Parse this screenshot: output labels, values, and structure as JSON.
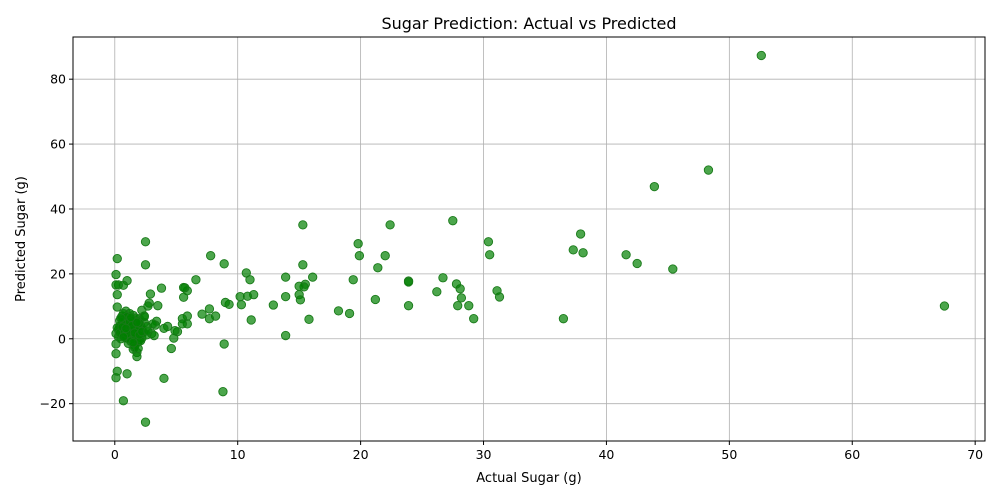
{
  "chart_data": {
    "type": "scatter",
    "title": "Sugar Prediction: Actual vs Predicted",
    "xlabel": "Actual Sugar (g)",
    "ylabel": "Predicted Sugar (g)",
    "xlim": [
      -3.4,
      70.8
    ],
    "ylim": [
      -31.5,
      93
    ],
    "xticks": [
      0,
      10,
      20,
      30,
      40,
      50,
      60,
      70
    ],
    "yticks": [
      -20,
      0,
      20,
      40,
      60,
      80
    ],
    "grid": true,
    "point_color": "#008000",
    "point_alpha": 0.7,
    "points": [
      [
        52.6,
        87.3
      ],
      [
        48.3,
        52.0
      ],
      [
        43.9,
        46.9
      ],
      [
        67.5,
        10.1
      ],
      [
        45.4,
        21.5
      ],
      [
        42.5,
        23.2
      ],
      [
        41.6,
        25.9
      ],
      [
        38.1,
        26.5
      ],
      [
        37.9,
        32.3
      ],
      [
        37.3,
        27.4
      ],
      [
        36.5,
        6.2
      ],
      [
        31.3,
        12.9
      ],
      [
        31.1,
        14.8
      ],
      [
        30.4,
        29.9
      ],
      [
        30.5,
        25.9
      ],
      [
        29.2,
        6.2
      ],
      [
        28.8,
        10.2
      ],
      [
        28.2,
        12.6
      ],
      [
        28.1,
        15.4
      ],
      [
        27.8,
        16.9
      ],
      [
        27.9,
        10.2
      ],
      [
        27.5,
        36.4
      ],
      [
        26.7,
        18.8
      ],
      [
        26.2,
        14.5
      ],
      [
        23.9,
        17.8
      ],
      [
        23.9,
        17.5
      ],
      [
        23.9,
        10.2
      ],
      [
        22.4,
        35.1
      ],
      [
        22.0,
        25.6
      ],
      [
        21.4,
        21.9
      ],
      [
        21.2,
        12.1
      ],
      [
        19.9,
        25.6
      ],
      [
        19.8,
        29.3
      ],
      [
        19.4,
        18.2
      ],
      [
        19.1,
        7.8
      ],
      [
        18.2,
        8.6
      ],
      [
        16.1,
        19.0
      ],
      [
        15.8,
        6.0
      ],
      [
        15.5,
        16.8
      ],
      [
        15.4,
        16.0
      ],
      [
        15.3,
        22.8
      ],
      [
        15.3,
        35.1
      ],
      [
        15.0,
        16.2
      ],
      [
        15.0,
        13.6
      ],
      [
        15.1,
        12.0
      ],
      [
        13.9,
        19.0
      ],
      [
        13.9,
        13.0
      ],
      [
        13.9,
        1.0
      ],
      [
        12.9,
        10.4
      ],
      [
        11.3,
        13.6
      ],
      [
        11.1,
        5.8
      ],
      [
        11.0,
        18.2
      ],
      [
        10.8,
        13.1
      ],
      [
        10.7,
        20.3
      ],
      [
        10.2,
        13.0
      ],
      [
        10.3,
        10.5
      ],
      [
        9.3,
        10.6
      ],
      [
        9.0,
        11.2
      ],
      [
        8.9,
        23.1
      ],
      [
        8.9,
        -1.6
      ],
      [
        8.8,
        -16.3
      ],
      [
        8.2,
        7.0
      ],
      [
        7.8,
        25.6
      ],
      [
        7.7,
        9.2
      ],
      [
        7.7,
        6.2
      ],
      [
        7.1,
        7.6
      ],
      [
        6.6,
        18.2
      ],
      [
        5.9,
        14.8
      ],
      [
        5.9,
        7.0
      ],
      [
        5.9,
        4.6
      ],
      [
        5.7,
        15.7
      ],
      [
        5.6,
        15.8
      ],
      [
        5.6,
        12.8
      ],
      [
        5.5,
        6.2
      ],
      [
        5.5,
        4.6
      ],
      [
        5.1,
        2.2
      ],
      [
        4.9,
        2.5
      ],
      [
        4.8,
        0.2
      ],
      [
        4.6,
        -3.0
      ],
      [
        4.3,
        3.8
      ],
      [
        4.0,
        3.2
      ],
      [
        4.0,
        -12.2
      ],
      [
        3.8,
        15.6
      ],
      [
        3.5,
        10.2
      ],
      [
        3.4,
        5.4
      ],
      [
        3.3,
        4.2
      ],
      [
        3.0,
        1.6
      ],
      [
        2.9,
        13.8
      ],
      [
        2.8,
        11.0
      ],
      [
        2.7,
        10.1
      ],
      [
        2.5,
        29.9
      ],
      [
        2.5,
        22.8
      ],
      [
        2.5,
        -25.7
      ],
      [
        2.4,
        7.0
      ],
      [
        2.4,
        5.0
      ],
      [
        2.2,
        8.8
      ],
      [
        2.2,
        0.2
      ],
      [
        2.1,
        4.0
      ],
      [
        2.0,
        6.2
      ],
      [
        2.0,
        -0.3
      ],
      [
        1.8,
        -4.2
      ],
      [
        1.8,
        -5.5
      ],
      [
        1.7,
        3.5
      ],
      [
        1.6,
        -2.0
      ],
      [
        1.5,
        7.2
      ],
      [
        1.5,
        -3.2
      ],
      [
        1.3,
        5.8
      ],
      [
        1.2,
        0.8
      ],
      [
        1.0,
        17.9
      ],
      [
        1.0,
        -10.8
      ],
      [
        0.7,
        16.5
      ],
      [
        0.7,
        -19.1
      ],
      [
        0.6,
        7.0
      ],
      [
        0.4,
        3.8
      ],
      [
        0.3,
        16.6
      ],
      [
        0.2,
        24.7
      ],
      [
        0.2,
        13.6
      ],
      [
        0.2,
        9.8
      ],
      [
        0.1,
        19.8
      ],
      [
        0.1,
        16.6
      ],
      [
        0.1,
        1.6
      ],
      [
        0.1,
        -1.6
      ],
      [
        0.1,
        -4.6
      ],
      [
        0.1,
        -12.0
      ],
      [
        0.2,
        -10.0
      ],
      [
        0.5,
        2.2
      ],
      [
        0.5,
        4.2
      ],
      [
        0.6,
        5.0
      ],
      [
        0.7,
        3.0
      ],
      [
        0.8,
        1.0
      ],
      [
        0.8,
        6.0
      ],
      [
        0.9,
        2.5
      ],
      [
        0.9,
        8.5
      ],
      [
        1.0,
        4.4
      ],
      [
        1.0,
        0.2
      ],
      [
        1.1,
        3.0
      ],
      [
        1.1,
        5.6
      ],
      [
        1.2,
        2.0
      ],
      [
        1.2,
        7.8
      ],
      [
        1.3,
        1.2
      ],
      [
        1.3,
        3.6
      ],
      [
        1.4,
        0.6
      ],
      [
        1.4,
        5.0
      ],
      [
        1.5,
        2.8
      ],
      [
        1.5,
        1.5
      ],
      [
        1.6,
        4.6
      ],
      [
        1.6,
        0.0
      ],
      [
        1.7,
        6.4
      ],
      [
        1.7,
        2.0
      ],
      [
        1.8,
        1.0
      ],
      [
        1.8,
        3.8
      ],
      [
        1.9,
        5.4
      ],
      [
        1.9,
        -1.0
      ],
      [
        2.0,
        2.6
      ],
      [
        2.1,
        1.4
      ],
      [
        2.2,
        3.2
      ],
      [
        2.3,
        2.0
      ],
      [
        2.4,
        6.8
      ],
      [
        2.6,
        1.2
      ],
      [
        2.6,
        3.8
      ],
      [
        0.3,
        0.6
      ],
      [
        0.3,
        2.8
      ],
      [
        0.4,
        5.6
      ],
      [
        0.5,
        0.0
      ],
      [
        0.6,
        1.4
      ],
      [
        0.7,
        7.8
      ],
      [
        0.8,
        4.4
      ],
      [
        0.9,
        0.4
      ],
      [
        1.0,
        6.8
      ],
      [
        1.1,
        -1.4
      ],
      [
        1.2,
        4.0
      ],
      [
        1.3,
        -0.8
      ],
      [
        1.4,
        2.6
      ],
      [
        1.5,
        5.6
      ],
      [
        1.6,
        -2.6
      ],
      [
        1.7,
        0.8
      ],
      [
        1.8,
        2.4
      ],
      [
        1.9,
        3.0
      ],
      [
        2.0,
        4.8
      ],
      [
        2.1,
        -0.6
      ],
      [
        0.2,
        3.4
      ],
      [
        0.4,
        1.8
      ],
      [
        0.6,
        3.6
      ],
      [
        0.8,
        2.0
      ],
      [
        1.0,
        1.6
      ],
      [
        1.2,
        5.2
      ],
      [
        1.4,
        4.0
      ],
      [
        1.6,
        1.8
      ],
      [
        1.8,
        5.0
      ],
      [
        2.0,
        1.2
      ],
      [
        2.2,
        2.2
      ],
      [
        2.7,
        2.4
      ],
      [
        3.1,
        4.6
      ],
      [
        3.2,
        1.0
      ],
      [
        1.9,
        -3.0
      ],
      [
        1.5,
        -1.2
      ],
      [
        0.9,
        3.2
      ],
      [
        1.3,
        6.6
      ],
      [
        0.5,
        6.4
      ],
      [
        0.7,
        0.6
      ]
    ]
  }
}
